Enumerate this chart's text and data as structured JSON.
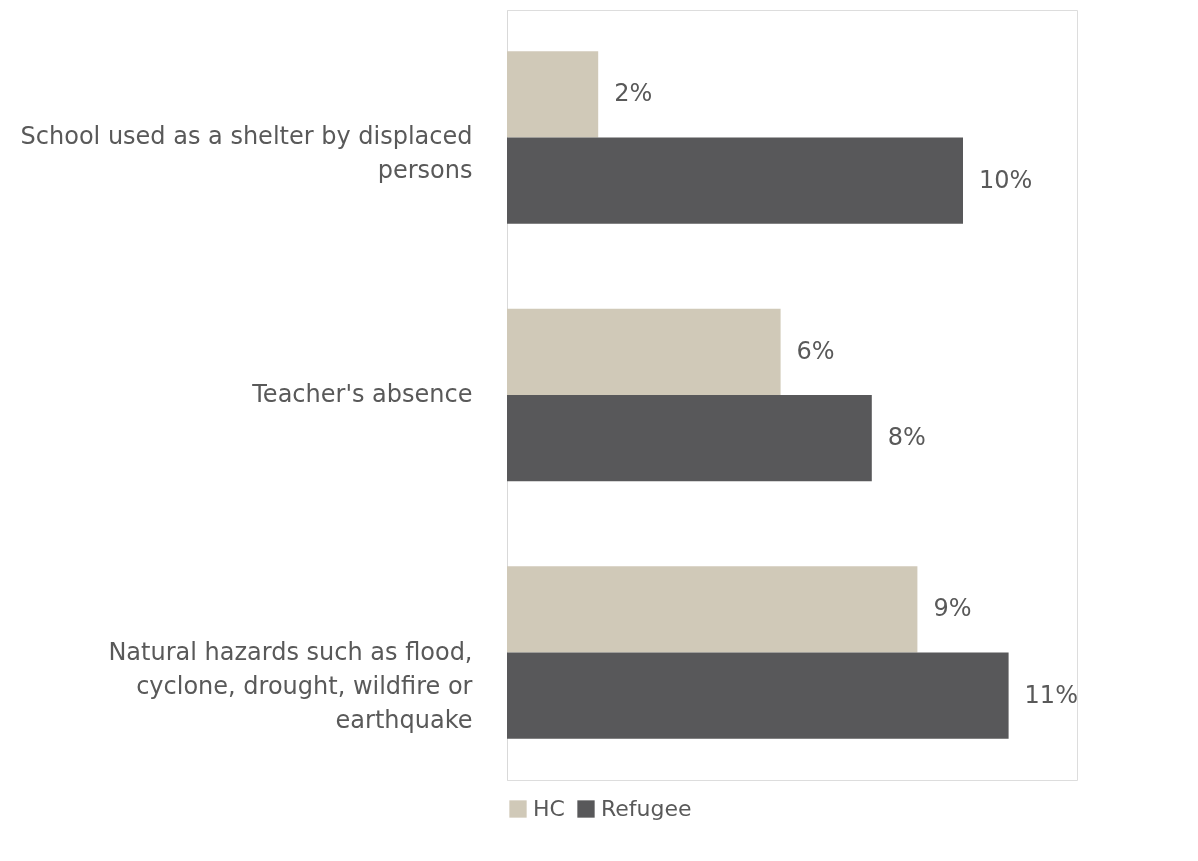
{
  "chart_data": {
    "type": "bar",
    "orientation": "horizontal",
    "categories": [
      "School used as a shelter by displaced persons",
      "Teacher's absence",
      "Natural hazards such as flood, cyclone, drought, wildfire or earthquake"
    ],
    "series": [
      {
        "name": "HC",
        "color": "#d0c9b8",
        "values": [
          2,
          6,
          9
        ],
        "value_labels": [
          "2%",
          "6%",
          "9%"
        ]
      },
      {
        "name": "Refugee",
        "color": "#58585a",
        "values": [
          10,
          8,
          11
        ],
        "value_labels": [
          "10%",
          "8%",
          "11%"
        ]
      }
    ],
    "xlim": [
      0,
      12.5
    ],
    "tick_labels": "y",
    "grid": false,
    "legend": "bottom"
  }
}
